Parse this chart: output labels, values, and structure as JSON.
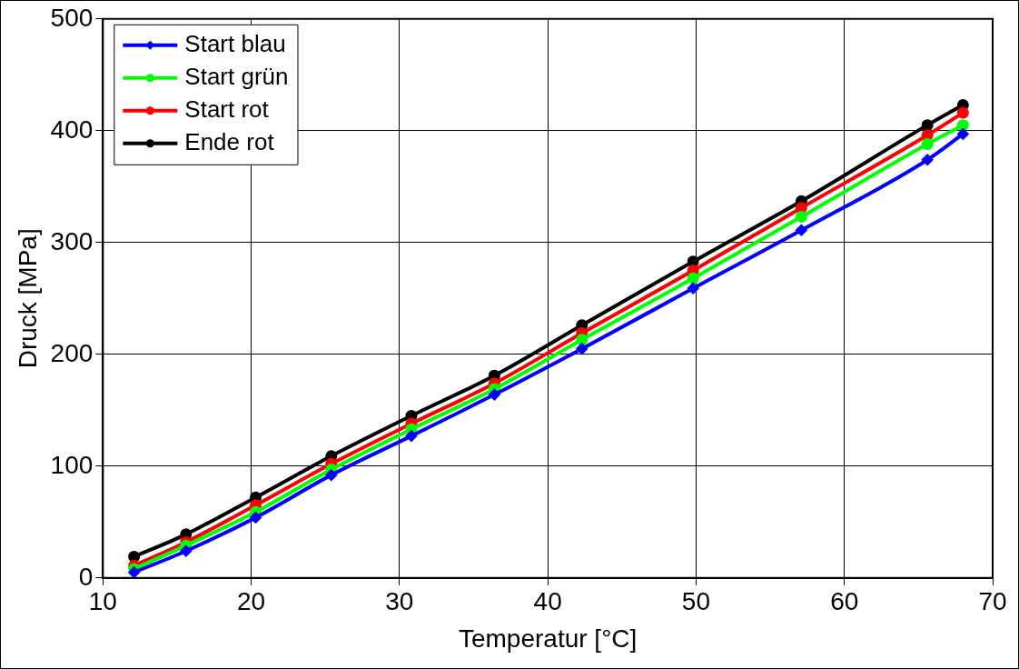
{
  "chart_data": {
    "type": "line",
    "xlabel": "Temperatur [°C]",
    "ylabel": "Druck [MPa]",
    "x": [
      12.1,
      15.6,
      20.3,
      25.4,
      30.8,
      36.4,
      42.3,
      49.8,
      57.1,
      65.6,
      68
    ],
    "series": [
      {
        "name": "Start blau",
        "color": "#0000ff",
        "marker": "diamond",
        "values": [
          5,
          24,
          54,
          92,
          127,
          164,
          205,
          259,
          311,
          374,
          397
        ]
      },
      {
        "name": "Start grün",
        "color": "#00ff00",
        "marker": "circle",
        "values": [
          8,
          29,
          59,
          97,
          133,
          169,
          213,
          268,
          323,
          388,
          405
        ]
      },
      {
        "name": "Start rot",
        "color": "#ff0000",
        "marker": "circle",
        "values": [
          11,
          32,
          65,
          102,
          138,
          174,
          219,
          275,
          331,
          396,
          416
        ]
      },
      {
        "name": "Ende rot",
        "color": "#000000",
        "marker": "circle",
        "values": [
          19,
          39,
          72,
          109,
          145,
          181,
          226,
          283,
          337,
          405,
          423
        ]
      }
    ],
    "xlim": [
      10,
      70
    ],
    "xticks": [
      10,
      20,
      30,
      40,
      50,
      60,
      70
    ],
    "ylim": [
      0,
      500
    ],
    "yticks": [
      0,
      100,
      200,
      300,
      400,
      500
    ],
    "grid": true,
    "legend": "top left"
  }
}
